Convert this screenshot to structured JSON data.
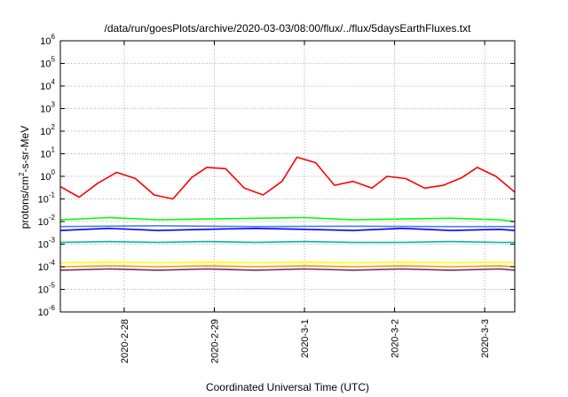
{
  "chart_data": {
    "type": "line",
    "title": "/data/run/goesPlots/archive/2020-03-03/08:00/flux/../flux/5daysEarthFluxes.txt",
    "xlabel": "Coordinated Universal Time (UTC)",
    "ylabel": "protons/cm²-s-sr-MeV",
    "y_scale": "log",
    "ylim": [
      1e-06,
      1000000.0
    ],
    "xlim": [
      "2020-02-27 07:00",
      "2020-03-03 08:00"
    ],
    "grid": true,
    "x_tick_labels": [
      "2020-2-28",
      "2020-2-29",
      "2020-3-1",
      "2020-3-2",
      "2020-3-3"
    ],
    "x_tick_dates": [
      "2020-02-28 00:00",
      "2020-02-29 00:00",
      "2020-03-01 00:00",
      "2020-03-02 00:00",
      "2020-03-03 00:00"
    ],
    "y_tick_exponents": [
      -6,
      -5,
      -4,
      -3,
      -2,
      -1,
      0,
      1,
      2,
      3,
      4,
      5,
      6
    ],
    "series": [
      {
        "color": "#ff0000",
        "x": [
          "2020-02-27 07:00",
          "2020-02-27 12:00",
          "2020-02-27 17:00",
          "2020-02-27 22:00",
          "2020-02-28 03:00",
          "2020-02-28 08:00",
          "2020-02-28 13:00",
          "2020-02-28 18:00",
          "2020-02-28 22:00",
          "2020-02-29 03:00",
          "2020-02-29 08:00",
          "2020-02-29 13:00",
          "2020-02-29 18:00",
          "2020-02-29 22:00",
          "2020-03-01 03:00",
          "2020-03-01 08:00",
          "2020-03-01 13:00",
          "2020-03-01 18:00",
          "2020-03-01 22:00",
          "2020-03-02 03:00",
          "2020-03-02 08:00",
          "2020-03-02 13:00",
          "2020-03-02 18:00",
          "2020-03-02 22:00",
          "2020-03-03 03:00",
          "2020-03-03 08:00"
        ],
        "values": [
          0.35,
          0.12,
          0.5,
          1.5,
          0.8,
          0.15,
          0.1,
          0.9,
          2.5,
          2.2,
          0.3,
          0.15,
          0.6,
          7,
          4,
          0.4,
          0.6,
          0.3,
          1.0,
          0.8,
          0.3,
          0.4,
          0.9,
          2.5,
          1.0,
          0.2
        ]
      },
      {
        "color": "#00ff00",
        "x": [
          "2020-02-27 07:00",
          "2020-02-27 20:00",
          "2020-02-28 09:00",
          "2020-02-28 22:00",
          "2020-02-29 11:00",
          "2020-03-01 00:00",
          "2020-03-01 13:00",
          "2020-03-02 02:00",
          "2020-03-02 15:00",
          "2020-03-03 04:00",
          "2020-03-03 08:00"
        ],
        "values": [
          0.012,
          0.015,
          0.012,
          0.013,
          0.014,
          0.015,
          0.012,
          0.013,
          0.014,
          0.012,
          0.01
        ]
      },
      {
        "color": "#0000ff",
        "x": [
          "2020-02-27 07:00",
          "2020-02-27 20:00",
          "2020-02-28 09:00",
          "2020-02-28 22:00",
          "2020-02-29 11:00",
          "2020-03-01 00:00",
          "2020-03-01 13:00",
          "2020-03-02 02:00",
          "2020-03-02 15:00",
          "2020-03-03 04:00",
          "2020-03-03 08:00"
        ],
        "values": [
          0.004,
          0.005,
          0.004,
          0.0045,
          0.005,
          0.0045,
          0.004,
          0.005,
          0.004,
          0.0045,
          0.004
        ]
      },
      {
        "color": "#4a7dff",
        "x": [
          "2020-02-27 07:00",
          "2020-02-28 09:00",
          "2020-02-29 11:00",
          "2020-03-01 13:00",
          "2020-03-02 15:00",
          "2020-03-03 08:00"
        ],
        "values": [
          0.006,
          0.0065,
          0.006,
          0.0062,
          0.006,
          0.006
        ]
      },
      {
        "color": "#00b8a0",
        "x": [
          "2020-02-27 07:00",
          "2020-02-27 20:00",
          "2020-02-28 09:00",
          "2020-02-28 22:00",
          "2020-02-29 11:00",
          "2020-03-01 00:00",
          "2020-03-01 13:00",
          "2020-03-02 02:00",
          "2020-03-02 15:00",
          "2020-03-03 04:00",
          "2020-03-03 08:00"
        ],
        "values": [
          0.0012,
          0.0013,
          0.0012,
          0.0013,
          0.0012,
          0.0013,
          0.0012,
          0.0012,
          0.0013,
          0.0012,
          0.0012
        ]
      },
      {
        "color": "#ffff00",
        "x": [
          "2020-02-27 07:00",
          "2020-02-27 20:00",
          "2020-02-28 09:00",
          "2020-02-28 22:00",
          "2020-02-29 11:00",
          "2020-03-01 00:00",
          "2020-03-01 13:00",
          "2020-03-02 02:00",
          "2020-03-02 15:00",
          "2020-03-03 04:00",
          "2020-03-03 08:00"
        ],
        "values": [
          0.00015,
          0.00016,
          0.00015,
          0.00016,
          0.00015,
          0.00016,
          0.00015,
          0.00016,
          0.00015,
          0.00016,
          0.00015
        ]
      },
      {
        "color": "#ff9900",
        "x": [
          "2020-02-27 07:00",
          "2020-02-27 20:00",
          "2020-02-28 09:00",
          "2020-02-28 22:00",
          "2020-02-29 11:00",
          "2020-03-01 00:00",
          "2020-03-01 13:00",
          "2020-03-02 02:00",
          "2020-03-02 15:00",
          "2020-03-03 04:00",
          "2020-03-03 08:00"
        ],
        "values": [
          0.0001,
          0.00011,
          0.0001,
          0.00011,
          0.0001,
          0.00011,
          0.0001,
          0.00011,
          0.0001,
          0.00011,
          0.0001
        ]
      },
      {
        "color": "#7b2a6b",
        "x": [
          "2020-02-27 07:00",
          "2020-02-27 20:00",
          "2020-02-28 09:00",
          "2020-02-28 22:00",
          "2020-02-29 11:00",
          "2020-03-01 00:00",
          "2020-03-01 13:00",
          "2020-03-02 02:00",
          "2020-03-02 15:00",
          "2020-03-03 04:00",
          "2020-03-03 08:00"
        ],
        "values": [
          7e-05,
          8e-05,
          7e-05,
          8e-05,
          7e-05,
          8e-05,
          7e-05,
          8e-05,
          7e-05,
          8e-05,
          7e-05
        ]
      }
    ]
  }
}
